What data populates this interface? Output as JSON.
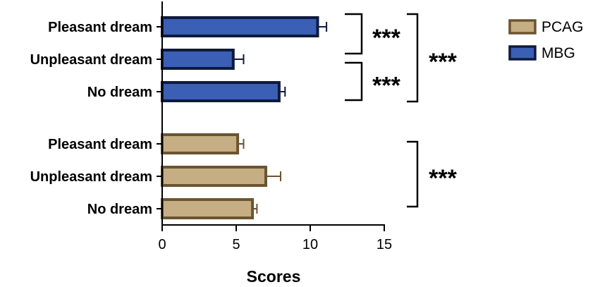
{
  "chart_data": {
    "type": "bar",
    "orientation": "horizontal",
    "xlabel": "Scores",
    "xlim": [
      0,
      15
    ],
    "xticks": [
      "0",
      "5",
      "10",
      "15"
    ],
    "grid": false,
    "legend_position": "top-right",
    "series": [
      {
        "name": "MBG",
        "color": "#3a5fb5",
        "edge_color": "#0f1a3d",
        "categories": [
          "Pleasant dream",
          "Unpleasant dream",
          "No dream"
        ],
        "values": [
          10.5,
          4.8,
          7.9
        ],
        "errors": [
          0.6,
          0.7,
          0.4
        ]
      },
      {
        "name": "PCAG",
        "color": "#c5ad84",
        "edge_color": "#6b5530",
        "categories": [
          "Pleasant dream",
          "Unpleasant dream",
          "No dream"
        ],
        "values": [
          5.1,
          7.0,
          6.1
        ],
        "errors": [
          0.4,
          1.0,
          0.3
        ]
      }
    ],
    "legend": [
      {
        "name": "PCAG",
        "color": "#c5ad84",
        "edge_color": "#6b5530"
      },
      {
        "name": "MBG",
        "color": "#3a5fb5",
        "edge_color": "#0f1a3d"
      }
    ],
    "annotations": [
      {
        "text": "***",
        "group": "MBG",
        "between": [
          "Pleasant dream",
          "Unpleasant dream"
        ]
      },
      {
        "text": "***",
        "group": "MBG",
        "between": [
          "Unpleasant dream",
          "No dream"
        ]
      },
      {
        "text": "***",
        "group": "MBG",
        "between": [
          "Pleasant dream",
          "No dream"
        ]
      },
      {
        "text": "***",
        "group": "PCAG",
        "between": [
          "Pleasant dream",
          "No dream"
        ]
      }
    ]
  }
}
